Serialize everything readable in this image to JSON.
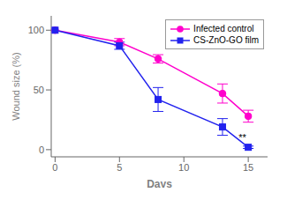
{
  "chart_data": {
    "type": "line",
    "xlabel": "Days",
    "ylabel": "Wound size (%)",
    "x": [
      0,
      5,
      8,
      13,
      15
    ],
    "series": [
      {
        "name": "Infected control",
        "color": "#FF00CC",
        "marker": "circle",
        "values": [
          100,
          90,
          76,
          47,
          28
        ],
        "yerr": [
          0,
          3,
          3.5,
          8,
          5
        ]
      },
      {
        "name": "CS-ZnO-GO film",
        "color": "#2222EE",
        "marker": "square",
        "values": [
          100,
          87,
          42,
          19,
          2
        ],
        "yerr": [
          0,
          3,
          10,
          7,
          1
        ]
      }
    ],
    "xlim": [
      -0.3,
      16.5
    ],
    "ylim": [
      -6,
      112
    ],
    "xticks": [
      0,
      5,
      10,
      15
    ],
    "yticks": [
      0,
      50,
      100
    ],
    "legend": "upper right",
    "annotations": [
      {
        "text": "**",
        "x": 14.55,
        "y": 7
      }
    ]
  }
}
